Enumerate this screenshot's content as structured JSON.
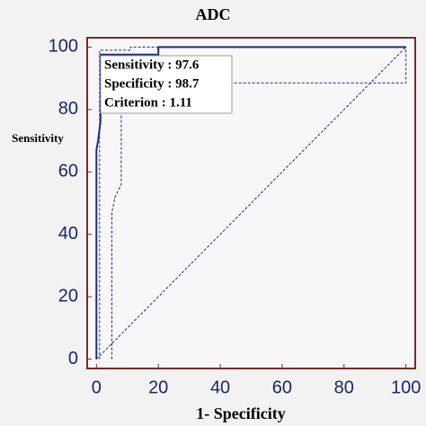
{
  "chart_data": {
    "type": "line",
    "title": "ADC",
    "xlabel": "1- Specificity",
    "ylabel": "Sensitivity",
    "xlim": [
      -3,
      103
    ],
    "ylim": [
      -3,
      103
    ],
    "xticks": [
      0,
      20,
      40,
      60,
      80,
      100
    ],
    "yticks": [
      0,
      20,
      40,
      60,
      80,
      100
    ],
    "series": [
      {
        "color": "#1f2f7a",
        "dash": false,
        "x": [
          0,
          0,
          0.5,
          1.3,
          1.3,
          20,
          20,
          100
        ],
        "values": [
          0,
          67,
          70,
          76,
          97.6,
          97.6,
          100,
          100
        ]
      },
      {
        "color": "#1f2f7a",
        "dash": true,
        "x": [
          1,
          1,
          11,
          11,
          100,
          100
        ],
        "values": [
          0,
          99,
          99,
          100,
          100,
          100
        ]
      },
      {
        "color": "#1f2f7a",
        "dash": true,
        "x": [
          5,
          5,
          6,
          8,
          8,
          100,
          100
        ],
        "values": [
          0,
          47,
          52,
          56,
          88.5,
          88.5,
          100
        ]
      },
      {
        "color": "#1f2f7a",
        "dash": true,
        "x": [
          0,
          100
        ],
        "values": [
          0,
          100
        ]
      }
    ],
    "annotations": [
      "Sensitivity : 97.6",
      "Specificity : 98.7",
      "Criterion : 1.11"
    ]
  }
}
